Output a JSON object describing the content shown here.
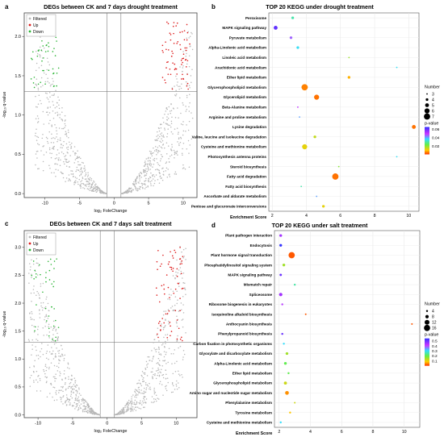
{
  "panels": {
    "a": {
      "letter": "a",
      "title": "DEGs between CK and 7 days drought treatment",
      "xlabel": "log₂ FoleChange",
      "ylabel": "-log₁₀ q-value"
    },
    "b": {
      "letter": "b",
      "title": "TOP 20 KEGG under drought treatment",
      "xlabel": "Enrichment Score"
    },
    "c": {
      "letter": "c",
      "title": "DEGs between CK and 7 days salt treatment",
      "xlabel": "log₂ FoleChange",
      "ylabel": "-log₁₀ q-value"
    },
    "d": {
      "letter": "d",
      "title": "TOP 20 KEGG under salt treatment",
      "xlabel": "Enrichment Score"
    }
  },
  "legend_volcano": [
    "Filtered",
    "Up",
    "Down"
  ],
  "legend_number_title": "Number",
  "legend_pvalue_title": "p-value",
  "colors": {
    "filtered": "#b8b8b8",
    "up": "#dd1a1a",
    "down": "#29b433"
  },
  "chart_data": [
    {
      "type": "scatter",
      "panel": "a",
      "title": "DEGs between CK and 7 days drought treatment",
      "xlabel": "log₂ FoleChange",
      "ylabel": "-log₁₀ q-value",
      "xlim": [
        -13,
        12
      ],
      "ylim": [
        -0.05,
        2.3
      ],
      "xticks": [
        -10,
        -5,
        0,
        5,
        10
      ],
      "yticks": [
        0.0,
        0.5,
        1.0,
        1.5,
        2.0
      ],
      "threshold_y": 1.3,
      "threshold_x": [
        -1,
        1
      ],
      "series": [
        {
          "name": "Filtered",
          "shape": "V-shaped cloud from about (±1, 0) to (±11, 2.1)"
        },
        {
          "name": "Up",
          "x_range": [
            7,
            11
          ],
          "y_range": [
            1.3,
            2.2
          ]
        },
        {
          "name": "Down",
          "x_range": [
            -12,
            -8
          ],
          "y_range": [
            1.3,
            2.0
          ]
        }
      ],
      "legend_position": "top-left"
    },
    {
      "type": "scatter",
      "panel": "b",
      "title": "TOP 20 KEGG under drought treatment",
      "xlabel": "Enrichment Score",
      "xlim": [
        1.8,
        10.6
      ],
      "xticks": [
        2,
        4,
        6,
        8,
        10
      ],
      "categories": [
        "Peroxisome",
        "MAPK signaling pathway",
        "Pyruvate metabolism",
        "Alpha-Linolenic acid metabolism",
        "Linoleic acid metabolism",
        "Arachidonic acid metabolism",
        "Ether lipid metabolism",
        "Glycerophospholipid metabolism",
        "Glycerolipid metabolism",
        "Beta-Alanine metabolism",
        "Arginine and proline metabolism",
        "Lysine degradation",
        "Valine, leucine and isoleucine degradation",
        "Cysteine and methionine metabolism",
        "Photosynthesis antenna proteins",
        "Steroid biosynthesis",
        "Fatty acid degradation",
        "Fatty acid biosynthesis",
        "Ascorbate and aldarate metabolism",
        "Pentose and glucuronate interconversions"
      ],
      "x": [
        3.2,
        2.2,
        3.1,
        3.5,
        6.5,
        9.3,
        6.5,
        3.9,
        4.6,
        3.5,
        3.6,
        10.3,
        4.5,
        3.9,
        9.3,
        5.9,
        5.7,
        3.7,
        4.6,
        5.0
      ],
      "number": [
        4,
        5,
        4,
        4,
        3,
        3,
        4,
        7,
        6,
        3,
        3,
        5,
        4,
        6,
        3,
        3,
        7,
        3,
        3,
        4
      ],
      "pvalue": [
        0.03,
        0.06,
        0.045,
        0.035,
        0.018,
        0.035,
        0.008,
        0.005,
        0.004,
        0.05,
        0.04,
        0.004,
        0.015,
        0.012,
        0.035,
        0.02,
        0.004,
        0.03,
        0.04,
        0.012
      ],
      "size_legend": [
        3,
        4,
        5,
        6,
        7
      ],
      "color_legend": {
        "title": "p-value",
        "ticks": [
          0.02,
          0.04,
          0.06
        ]
      },
      "legend_position": "right"
    },
    {
      "type": "scatter",
      "panel": "c",
      "title": "DEGs between CK and 7 days salt treatment",
      "xlabel": "log₂ FoleChange",
      "ylabel": "-log₁₀ q-value",
      "xlim": [
        -12,
        13
      ],
      "ylim": [
        -0.05,
        3.3
      ],
      "xticks": [
        -10,
        -5,
        0,
        5,
        10
      ],
      "yticks": [
        0.0,
        0.5,
        1.0,
        1.5,
        2.0,
        2.5,
        3.0
      ],
      "threshold_y": 1.3,
      "threshold_x": [
        -1,
        1
      ],
      "series": [
        {
          "name": "Filtered",
          "shape": "V-shaped cloud from about (±1, 0) to (±11, 3.0)"
        },
        {
          "name": "Up",
          "x_range": [
            7,
            11
          ],
          "y_range": [
            1.3,
            3.0
          ]
        },
        {
          "name": "Down",
          "x_range": [
            -11,
            -7
          ],
          "y_range": [
            1.3,
            2.8
          ]
        }
      ],
      "legend_position": "top-left"
    },
    {
      "type": "scatter",
      "panel": "d",
      "title": "TOP 20 KEGG under salt treatment",
      "xlabel": "Enrichment Score",
      "xlim": [
        1.7,
        11
      ],
      "xticks": [
        2,
        4,
        6,
        8,
        10
      ],
      "categories": [
        "Plant pathogen interaction",
        "Endocytosis",
        "Plant hormone signal transduction",
        "Phosphatidylinositol signaling system",
        "MAPK signaling pathway",
        "Mismatch repair",
        "Spliceosome",
        "Ribosome biogenesis in eukaryotes",
        "Isoquinoline alkaloid biosynthesis",
        "Anthocyanin biosynthesis",
        "Phenylpropanoid biosynthesis",
        "Carbon fixation in photosynthetic organisms",
        "Glyoxylate and dicarboxylate metabolism",
        "Alpha-Linolenic acid metabolism",
        "Ether lipid metabolism",
        "Glycerophospholipid metabolism",
        "Amino sugar and nucleotide sugar metabolism",
        "Phenylalanine metabolism",
        "Tyrosine metabolism",
        "Cysteine and methionine metabolism"
      ],
      "x": [
        2.1,
        2.1,
        2.8,
        2.3,
        2.1,
        3.0,
        2.1,
        2.2,
        3.7,
        10.5,
        2.2,
        2.3,
        2.5,
        2.4,
        2.6,
        2.4,
        2.5,
        3.0,
        2.7,
        2.1
      ],
      "number": [
        6,
        6,
        16,
        6,
        5,
        4,
        8,
        4,
        3,
        3,
        4,
        4,
        6,
        6,
        4,
        7,
        9,
        3,
        4,
        4
      ],
      "pvalue": [
        0.45,
        0.55,
        0.02,
        0.15,
        0.5,
        0.25,
        0.45,
        0.4,
        0.02,
        0.02,
        0.5,
        0.3,
        0.15,
        0.2,
        0.2,
        0.12,
        0.05,
        0.12,
        0.08,
        0.3
      ],
      "size_legend": [
        4,
        8,
        12,
        16
      ],
      "color_legend": {
        "title": "p-value",
        "ticks": [
          0.1,
          0.2,
          0.3,
          0.4,
          0.5
        ]
      },
      "legend_position": "right"
    }
  ]
}
